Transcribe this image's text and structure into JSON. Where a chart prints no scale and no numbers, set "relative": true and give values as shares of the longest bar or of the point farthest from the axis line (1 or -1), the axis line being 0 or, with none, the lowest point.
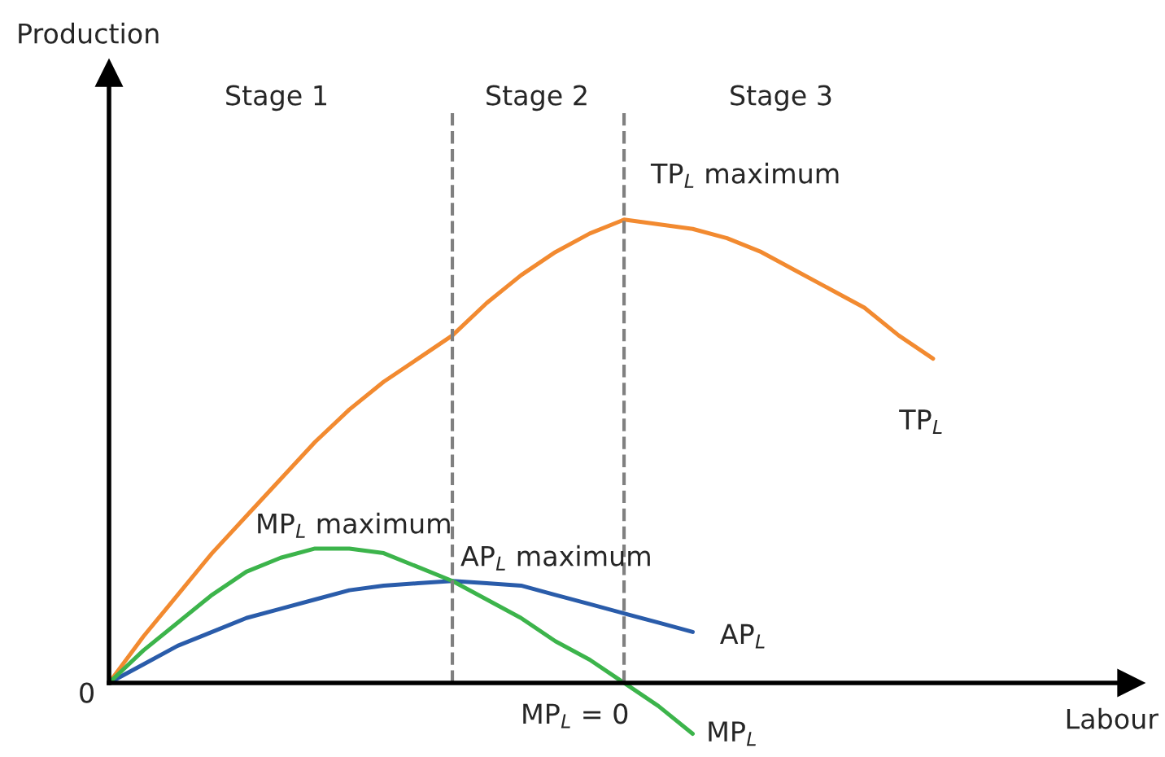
{
  "chart_data": {
    "type": "line",
    "relative": true,
    "xlabel": "Labour",
    "categories": [
      null,
      null,
      null,
      null,
      null,
      null,
      null,
      null,
      null,
      null,
      null,
      null,
      null,
      null,
      null,
      null,
      null,
      null,
      null,
      null,
      null,
      null,
      null,
      null,
      null,
      null,
      null,
      null,
      null,
      null
    ],
    "series": [
      {
        "name": "TP$_{L}$",
        "color": "#f28a30",
        "values": [
          0,
          0.1,
          0.19,
          0.28,
          0.36,
          0.44,
          0.52,
          0.59,
          0.65,
          0.7,
          0.75,
          0.82,
          0.88,
          0.93,
          0.97,
          1.0,
          0.99,
          0.98,
          0.96,
          0.93,
          0.89,
          0.85,
          0.81,
          0.75,
          0.7,
          null,
          null,
          null,
          null,
          null
        ]
      },
      {
        "name": "AP$_{L}$",
        "color": "#2a5caa",
        "values": [
          0,
          0.04,
          0.08,
          0.11,
          0.14,
          0.16,
          0.18,
          0.2,
          0.21,
          0.215,
          0.22,
          0.215,
          0.21,
          0.19,
          0.17,
          0.15,
          0.13,
          0.11,
          null,
          null,
          null,
          null,
          null,
          null,
          null,
          null,
          null,
          null,
          null,
          null
        ]
      },
      {
        "name": "MP$_{L}$",
        "color": "#3cb44b",
        "values": [
          0,
          0.07,
          0.13,
          0.19,
          0.24,
          0.27,
          0.29,
          0.29,
          0.28,
          0.25,
          0.22,
          0.18,
          0.14,
          0.09,
          0.05,
          0,
          -0.05,
          -0.11,
          null,
          null,
          null,
          null,
          null,
          null,
          null,
          null,
          null,
          null,
          null,
          null
        ]
      }
    ],
    "annotations": [
      "Production",
      "Stage 1",
      "Stage 2",
      "Stage 3",
      "TP$_{L}$ maximum",
      "MP$_{L}$ maximum",
      "AP$_{L}$ maximum",
      "MP$_{L}$ = 0",
      "0"
    ],
    "legend": false,
    "marker": "none",
    "line_style": "solid"
  }
}
